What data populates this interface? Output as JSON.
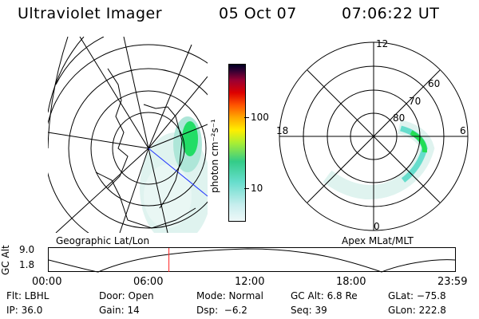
{
  "header": {
    "instrument": "Ultraviolet Imager",
    "date": "05 Oct 07",
    "time": "07:06:22 UT"
  },
  "colorbar": {
    "label": "photon cm⁻²s⁻¹",
    "ticks": [
      "100",
      "10"
    ]
  },
  "geo_map": {
    "label": "Geographic Lat/Lon"
  },
  "polar_map": {
    "label": "Apex MLat/MLT",
    "mlt_labels": [
      "12",
      "18",
      "6",
      "0"
    ],
    "lat_labels": [
      "60",
      "70",
      "80"
    ]
  },
  "timeline": {
    "ylabel": "GC Alt",
    "yticks": [
      "9.0",
      "1.8"
    ],
    "xticks": [
      "00:00",
      "06:00",
      "12:00",
      "18:00",
      "23:59"
    ],
    "marker_time_hours": 7.1
  },
  "status": {
    "flt": "Flt: LBHL",
    "door": "Door: Open",
    "mode": "Mode: Normal",
    "gc_alt": "GC Alt: 6.8 Re",
    "glat": "GLat: −75.8",
    "ip": "IP: 36.0",
    "gain": "Gain: 14",
    "dsp": "Dsp:  −6.2",
    "seq": "Seq: 39",
    "glon": "GLon: 222.8"
  },
  "colors": {
    "aurora_green": "#22dd55",
    "aurora_cyan": "#66ddcc",
    "aurora_faint": "#cfeee8",
    "marker": "#ff2222",
    "blue_line": "#2233ff"
  }
}
